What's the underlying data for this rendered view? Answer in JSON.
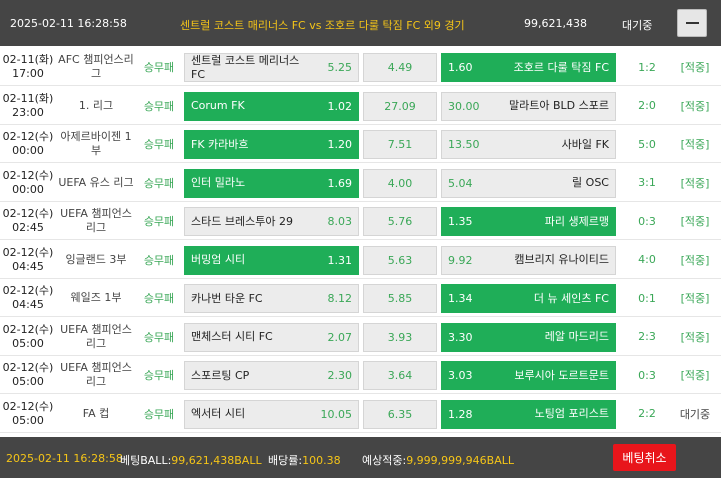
{
  "header": {
    "datetime": "2025-02-11 16:28:58",
    "title": "센트럴 코스트 매리너스 FC vs 조호르 다룰 탁짐 FC 외9 경기",
    "amount": "99,621,438",
    "status": "대기중",
    "collapse_icon": "minus-icon"
  },
  "colors": {
    "header_bg": "#454545",
    "accent_yellow": "#f5c518",
    "selected_green": "#1fae58",
    "odd_text_green": "#3aa757",
    "cancel_red": "#e8151b"
  },
  "rows": [
    {
      "date": "02-11(화)",
      "time": "17:00",
      "league": "AFC 챔피언스리그",
      "type": "승무패",
      "home": "센트럴 코스트 메리너스 FC",
      "home_odd": "5.25",
      "draw_odd": "4.49",
      "away_odd": "1.60",
      "away": "조호르 다룰 탁짐 FC",
      "score": "1:2",
      "result": "[적중]",
      "pick": "away"
    },
    {
      "date": "02-11(화)",
      "time": "23:00",
      "league": "1. 리그",
      "type": "승무패",
      "home": "Corum FK",
      "home_odd": "1.02",
      "draw_odd": "27.09",
      "away_odd": "30.00",
      "away": "말라트아 BLD 스포르",
      "score": "2:0",
      "result": "[적중]",
      "pick": "home"
    },
    {
      "date": "02-12(수)",
      "time": "00:00",
      "league": "아제르바이젠 1부",
      "type": "승무패",
      "home": "FK 카라바흐",
      "home_odd": "1.20",
      "draw_odd": "7.51",
      "away_odd": "13.50",
      "away": "사바일 FK",
      "score": "5:0",
      "result": "[적중]",
      "pick": "home"
    },
    {
      "date": "02-12(수)",
      "time": "00:00",
      "league": "UEFA 유스 리그",
      "type": "승무패",
      "home": "인터 밀라노",
      "home_odd": "1.69",
      "draw_odd": "4.00",
      "away_odd": "5.04",
      "away": "릴 OSC",
      "score": "3:1",
      "result": "[적중]",
      "pick": "home"
    },
    {
      "date": "02-12(수)",
      "time": "02:45",
      "league": "UEFA 챔피언스리그",
      "type": "승무패",
      "home": "스타드 브레스투아 29",
      "home_odd": "8.03",
      "draw_odd": "5.76",
      "away_odd": "1.35",
      "away": "파리 생제르맹",
      "score": "0:3",
      "result": "[적중]",
      "pick": "away"
    },
    {
      "date": "02-12(수)",
      "time": "04:45",
      "league": "잉글랜드 3부",
      "type": "승무패",
      "home": "버밍엄 시티",
      "home_odd": "1.31",
      "draw_odd": "5.63",
      "away_odd": "9.92",
      "away": "캠브리지 유나이티드",
      "score": "4:0",
      "result": "[적중]",
      "pick": "home"
    },
    {
      "date": "02-12(수)",
      "time": "04:45",
      "league": "웨일즈 1부",
      "type": "승무패",
      "home": "카나번 타운 FC",
      "home_odd": "8.12",
      "draw_odd": "5.85",
      "away_odd": "1.34",
      "away": "더 뉴 세인츠 FC",
      "score": "0:1",
      "result": "[적중]",
      "pick": "away"
    },
    {
      "date": "02-12(수)",
      "time": "05:00",
      "league": "UEFA 챔피언스리그",
      "type": "승무패",
      "home": "맨체스터 시티 FC",
      "home_odd": "2.07",
      "draw_odd": "3.93",
      "away_odd": "3.30",
      "away": "레알 마드리드",
      "score": "2:3",
      "result": "[적중]",
      "pick": "away"
    },
    {
      "date": "02-12(수)",
      "time": "05:00",
      "league": "UEFA 챔피언스리그",
      "type": "승무패",
      "home": "스포르팅 CP",
      "home_odd": "2.30",
      "draw_odd": "3.64",
      "away_odd": "3.03",
      "away": "보루시아 도르트문트",
      "score": "0:3",
      "result": "[적중]",
      "pick": "away"
    },
    {
      "date": "02-12(수)",
      "time": "05:00",
      "league": "FA 컵",
      "type": "승무패",
      "home": "엑서터 시티",
      "home_odd": "10.05",
      "draw_odd": "6.35",
      "away_odd": "1.28",
      "away": "노팅엄 포리스트",
      "score": "2:2",
      "result": "대기중",
      "pick": "away"
    }
  ],
  "footer": {
    "datetime": "2025-02-11 16:28:58",
    "bet_label": "베팅BALL:",
    "bet_value": "99,621,438BALL",
    "rate_label": "배당률:",
    "rate_value": "100.38",
    "expected_label": "예상적중:",
    "expected_value": "9,999,999,946BALL",
    "cancel_label": "베팅취소"
  }
}
